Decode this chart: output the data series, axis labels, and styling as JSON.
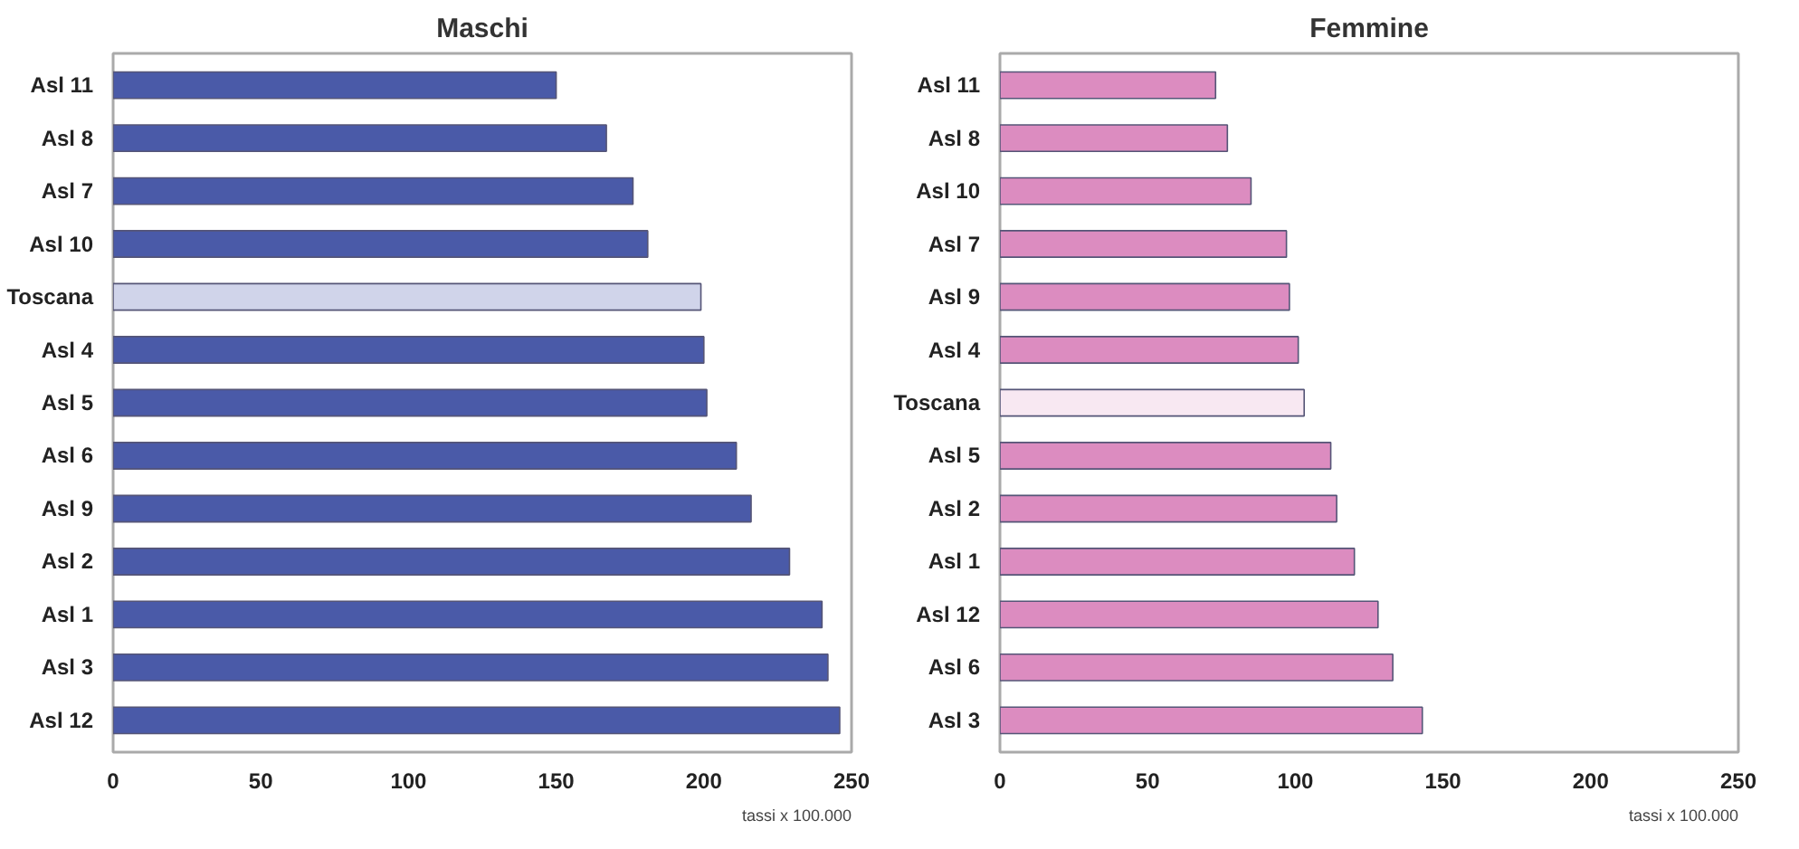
{
  "chart_data": [
    {
      "type": "bar",
      "orientation": "horizontal",
      "title": "Maschi",
      "annotations": [
        "tassi x 100.000"
      ],
      "categories": [
        "Asl 11",
        "Asl 8",
        "Asl 7",
        "Asl 10",
        "Toscana",
        "Asl 4",
        "Asl 5",
        "Asl 6",
        "Asl 9",
        "Asl 2",
        "Asl 1",
        "Asl 3",
        "Asl 12"
      ],
      "values": [
        150,
        167,
        176,
        181,
        199,
        200,
        201,
        211,
        216,
        229,
        240,
        242,
        246
      ],
      "colors": [
        "#4a5aa8",
        "#4a5aa8",
        "#4a5aa8",
        "#4a5aa8",
        "#d0d4ea",
        "#4a5aa8",
        "#4a5aa8",
        "#4a5aa8",
        "#4a5aa8",
        "#4a5aa8",
        "#4a5aa8",
        "#4a5aa8",
        "#4a5aa8"
      ],
      "xlim": [
        0,
        250
      ],
      "xticks": [
        0,
        50,
        100,
        150,
        200,
        250
      ],
      "grid": false
    },
    {
      "type": "bar",
      "orientation": "horizontal",
      "title": "Femmine",
      "annotations": [
        "tassi x 100.000"
      ],
      "categories": [
        "Asl 11",
        "Asl 8",
        "Asl 10",
        "Asl 7",
        "Asl 9",
        "Asl 4",
        "Toscana",
        "Asl 5",
        "Asl 2",
        "Asl 1",
        "Asl 12",
        "Asl 6",
        "Asl 3"
      ],
      "values": [
        73,
        77,
        85,
        97,
        98,
        101,
        103,
        112,
        114,
        120,
        128,
        133,
        143
      ],
      "colors": [
        "#dc8cc0",
        "#dc8cc0",
        "#dc8cc0",
        "#dc8cc0",
        "#dc8cc0",
        "#dc8cc0",
        "#f8e8f2",
        "#dc8cc0",
        "#dc8cc0",
        "#dc8cc0",
        "#dc8cc0",
        "#dc8cc0",
        "#dc8cc0"
      ],
      "xlim": [
        0,
        250
      ],
      "xticks": [
        0,
        50,
        100,
        150,
        200,
        250
      ],
      "grid": false
    }
  ]
}
